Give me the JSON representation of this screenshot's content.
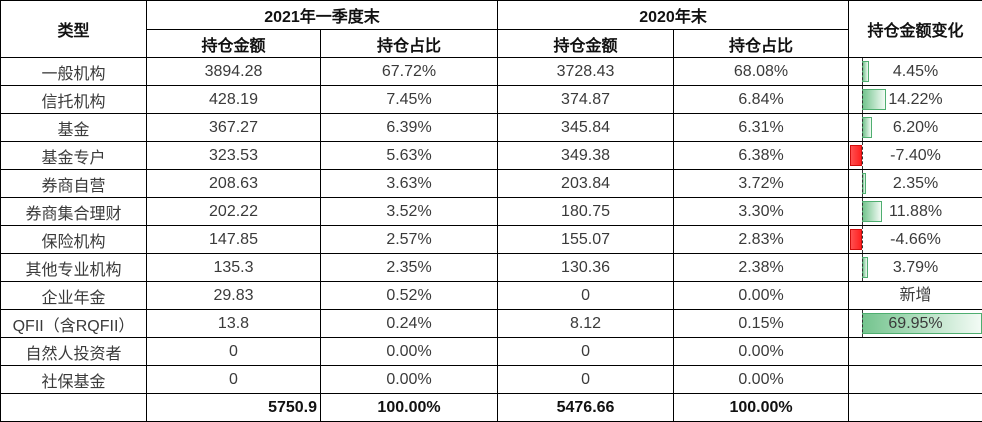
{
  "chart_data": {
    "type": "table",
    "columns": {
      "type": "类型",
      "group_2021": "2021年一季度末",
      "group_2020": "2020年末",
      "amount": "持仓金额",
      "share": "持仓占比",
      "change": "持仓金额变化"
    },
    "rows": [
      {
        "label": "一般机构",
        "amt_2021": "3894.28",
        "share_2021": "67.72%",
        "amt_2020": "3728.43",
        "share_2020": "68.08%",
        "change_label": "4.45%",
        "change_value": 4.45
      },
      {
        "label": "信托机构",
        "amt_2021": "428.19",
        "share_2021": "7.45%",
        "amt_2020": "374.87",
        "share_2020": "6.84%",
        "change_label": "14.22%",
        "change_value": 14.22
      },
      {
        "label": "基金",
        "amt_2021": "367.27",
        "share_2021": "6.39%",
        "amt_2020": "345.84",
        "share_2020": "6.31%",
        "change_label": "6.20%",
        "change_value": 6.2
      },
      {
        "label": "基金专户",
        "amt_2021": "323.53",
        "share_2021": "5.63%",
        "amt_2020": "349.38",
        "share_2020": "6.38%",
        "change_label": "-7.40%",
        "change_value": -7.4
      },
      {
        "label": "券商自营",
        "amt_2021": "208.63",
        "share_2021": "3.63%",
        "amt_2020": "203.84",
        "share_2020": "3.72%",
        "change_label": "2.35%",
        "change_value": 2.35
      },
      {
        "label": "券商集合理财",
        "amt_2021": "202.22",
        "share_2021": "3.52%",
        "amt_2020": "180.75",
        "share_2020": "3.30%",
        "change_label": "11.88%",
        "change_value": 11.88
      },
      {
        "label": "保险机构",
        "amt_2021": "147.85",
        "share_2021": "2.57%",
        "amt_2020": "155.07",
        "share_2020": "2.83%",
        "change_label": "-4.66%",
        "change_value": -4.66
      },
      {
        "label": "其他专业机构",
        "amt_2021": "135.3",
        "share_2021": "2.35%",
        "amt_2020": "130.36",
        "share_2020": "2.38%",
        "change_label": "3.79%",
        "change_value": 3.79
      },
      {
        "label": "企业年金",
        "amt_2021": "29.83",
        "share_2021": "0.52%",
        "amt_2020": "0",
        "share_2020": "0.00%",
        "change_label": "新增",
        "change_value": null
      },
      {
        "label": "QFII（含RQFII）",
        "amt_2021": "13.8",
        "share_2021": "0.24%",
        "amt_2020": "8.12",
        "share_2020": "0.15%",
        "change_label": "69.95%",
        "change_value": 69.95
      },
      {
        "label": "自然人投资者",
        "amt_2021": "0",
        "share_2021": "0.00%",
        "amt_2020": "0",
        "share_2020": "0.00%",
        "change_label": "",
        "change_value": null
      },
      {
        "label": "社保基金",
        "amt_2021": "0",
        "share_2021": "0.00%",
        "amt_2020": "0",
        "share_2020": "0.00%",
        "change_label": "",
        "change_value": null
      }
    ],
    "total_row": {
      "amt_2021": "5750.9",
      "share_2021": "100.00%",
      "amt_2020": "5476.66",
      "share_2020": "100.00%"
    },
    "databar": {
      "axis_min": -7.4,
      "axis_max": 69.95,
      "positive_fill_start": "#74c48e",
      "positive_fill_end": "#f3fbf5",
      "positive_border": "#4fae70",
      "negative_fill_start": "#ff5050",
      "negative_fill_end": "#ff2020",
      "negative_border": "#d10e0e",
      "axis_color": "#333333"
    }
  }
}
